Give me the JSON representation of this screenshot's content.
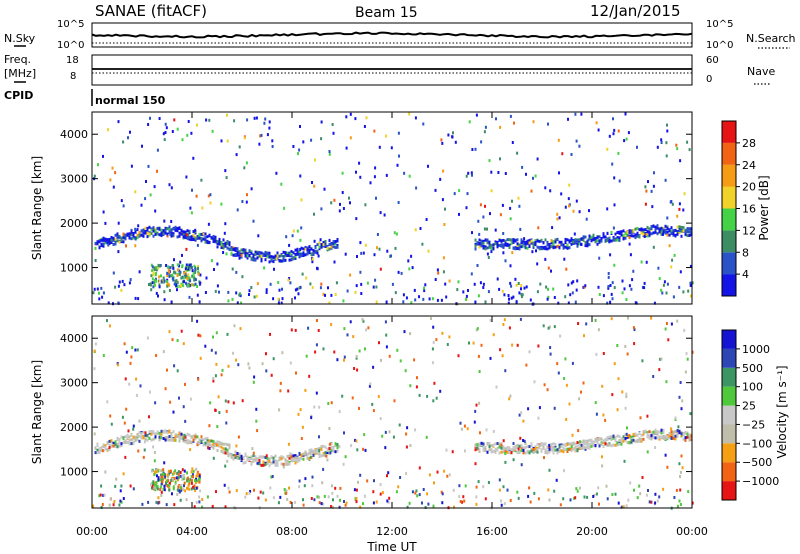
{
  "header": {
    "station": "SANAE (fitACF)",
    "beam": "Beam 15",
    "date": "12/Jan/2015"
  },
  "noise_panel": {
    "left_label": "N.Sky",
    "left_ticks": [
      "10^5",
      "10^0"
    ],
    "right_label": "N.Search",
    "right_ticks": [
      "10^5",
      "10^0"
    ]
  },
  "freq_panel": {
    "left_label_1": "Freq.",
    "left_label_2": "[MHz]",
    "left_ticks": [
      "18",
      "8"
    ],
    "right_label": "Nave",
    "right_ticks": [
      "60",
      "0"
    ]
  },
  "cpid_panel": {
    "label": "CPID",
    "value": "normal 150"
  },
  "colors": {
    "power": [
      "#1414e6",
      "#2a53c8",
      "#3c8c64",
      "#46d246",
      "#f0d228",
      "#f59b14",
      "#f06414",
      "#e61414"
    ],
    "velocity": [
      "#1414d2",
      "#2d46b4",
      "#3c9664",
      "#50c83c",
      "#c8c8c8",
      "#bebeaa",
      "#f5a014",
      "#f06414",
      "#e61414"
    ]
  },
  "chart_data": [
    {
      "type": "heatmap",
      "title": "Power",
      "ylabel": "Slant Range [km]",
      "xlabel": "",
      "xlim": [
        0,
        24
      ],
      "ylim": [
        180,
        4500
      ],
      "x_ticks": [
        "00:00",
        "04:00",
        "08:00",
        "12:00",
        "16:00",
        "20:00",
        "00:00"
      ],
      "y_ticks": [
        "1000",
        "2000",
        "3000",
        "4000"
      ],
      "colorbar_label": "Power [dB]",
      "colorbar_ticks": [
        "4",
        "8",
        "12",
        "16",
        "20",
        "24",
        "28"
      ],
      "features": [
        {
          "name": "echo band",
          "x_start": 0,
          "x_end": 9.7,
          "range_km": [
            1400,
            1850
          ]
        },
        {
          "name": "echo band",
          "x_start": 15.5,
          "x_end": 24,
          "range_km": [
            1450,
            1850
          ]
        },
        {
          "name": "near-range patch",
          "x_start": 2.3,
          "x_end": 4.3,
          "range_km": [
            600,
            1100
          ]
        }
      ]
    },
    {
      "type": "heatmap",
      "title": "Velocity",
      "ylabel": "Slant Range [km]",
      "xlabel": "Time UT",
      "xlim": [
        0,
        24
      ],
      "ylim": [
        180,
        4500
      ],
      "x_ticks": [
        "00:00",
        "04:00",
        "08:00",
        "12:00",
        "16:00",
        "20:00",
        "00:00"
      ],
      "y_ticks": [
        "1000",
        "2000",
        "3000",
        "4000"
      ],
      "colorbar_label": "Velocity [m s⁻¹]",
      "colorbar_ticks": [
        "1000",
        "500",
        "100",
        "25",
        "−25",
        "−100",
        "−500",
        "−1000"
      ]
    }
  ]
}
